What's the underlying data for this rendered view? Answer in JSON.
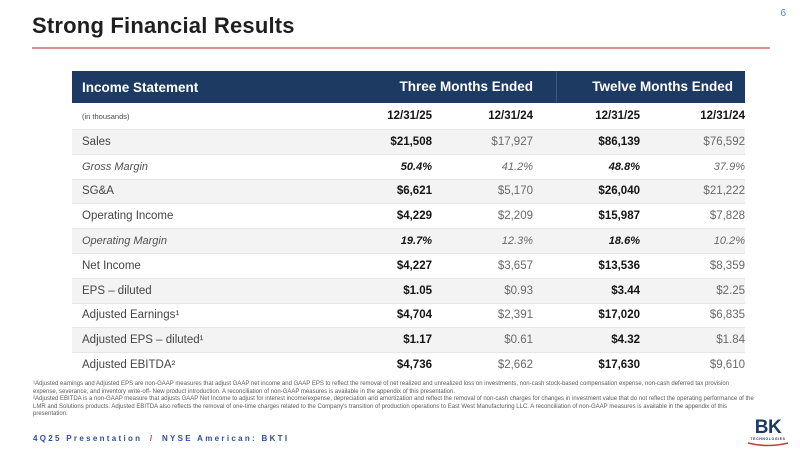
{
  "slide": {
    "title": "Strong Financial Results",
    "page_number": "6"
  },
  "colors": {
    "header_navy": "#1d3a63",
    "accent_underline": "#d5948b",
    "stripe_gray": "#f3f3f3",
    "footer_blue": "#2e4f9e",
    "slash_red": "#cf3a2e",
    "logo_arc_red": "#b8443c"
  },
  "table": {
    "header": {
      "title": "Income Statement",
      "group_headers": [
        "Three Months Ended",
        "Twelve Months Ended"
      ]
    },
    "subheader": {
      "note": "(in thousands)",
      "columns": [
        "12/31/25",
        "12/31/24",
        "12/31/25",
        "12/31/24"
      ]
    },
    "rows": [
      {
        "label": "Sales",
        "italic": false,
        "values": [
          "$21,508",
          "$17,927",
          "$86,139",
          "$76,592"
        ]
      },
      {
        "label": "Gross Margin",
        "italic": true,
        "values": [
          "50.4%",
          "41.2%",
          "48.8%",
          "37.9%"
        ]
      },
      {
        "label": "SG&A",
        "italic": false,
        "values": [
          "$6,621",
          "$5,170",
          "$26,040",
          "$21,222"
        ]
      },
      {
        "label": "Operating Income",
        "italic": false,
        "values": [
          "$4,229",
          "$2,209",
          "$15,987",
          "$7,828"
        ]
      },
      {
        "label": "Operating Margin",
        "italic": true,
        "values": [
          "19.7%",
          "12.3%",
          "18.6%",
          "10.2%"
        ]
      },
      {
        "label": "Net Income",
        "italic": false,
        "values": [
          "$4,227",
          "$3,657",
          "$13,536",
          "$8,359"
        ]
      },
      {
        "label": "EPS – diluted",
        "italic": false,
        "values": [
          "$1.05",
          "$0.93",
          "$3.44",
          "$2.25"
        ]
      },
      {
        "label": "Adjusted Earnings¹",
        "italic": false,
        "values": [
          "$4,704",
          "$2,391",
          "$17,020",
          "$6,835"
        ]
      },
      {
        "label": "Adjusted EPS – diluted¹",
        "italic": false,
        "values": [
          "$1.17",
          "$0.61",
          "$4.32",
          "$1.84"
        ]
      },
      {
        "label": "Adjusted EBITDA²",
        "italic": false,
        "values": [
          "$4,736",
          "$2,662",
          "$17,630",
          "$9,610"
        ]
      }
    ]
  },
  "footnotes": [
    "¹Adjusted earnings and Adjusted EPS are non-GAAP measures that adjust GAAP net income and GAAP EPS to reflect the removal of net realized and unrealized loss on investments, non-cash stock-based compensation expense, non-cash deferred tax provision expense, severance, and inventory write-off- New product introduction.  A reconciliation of non-GAAP measures is available in the appendix of this presentation.",
    "²Adjusted EBITDA is a non-GAAP measure that adjusts GAAP Net Income to adjust for interest income/expense, depreciation and amortization and reflect  the removal of non-cash charges for changes in investment value that do not reflect the operating performance of the LMR and Solutions products.  Adjusted EBITDA also reflects the removal of one-time charges related to the Company's transition of production operations to East West Manufacturing LLC.  A reconciliation of non-GAAP measures is available in the appendix of this presentation."
  ],
  "footer": {
    "presentation": "4Q25 Presentation",
    "separator": "/",
    "ticker": "NYSE American: BKTI"
  },
  "logo": {
    "text": "BK",
    "subtext": "TECHNOLOGIES"
  }
}
